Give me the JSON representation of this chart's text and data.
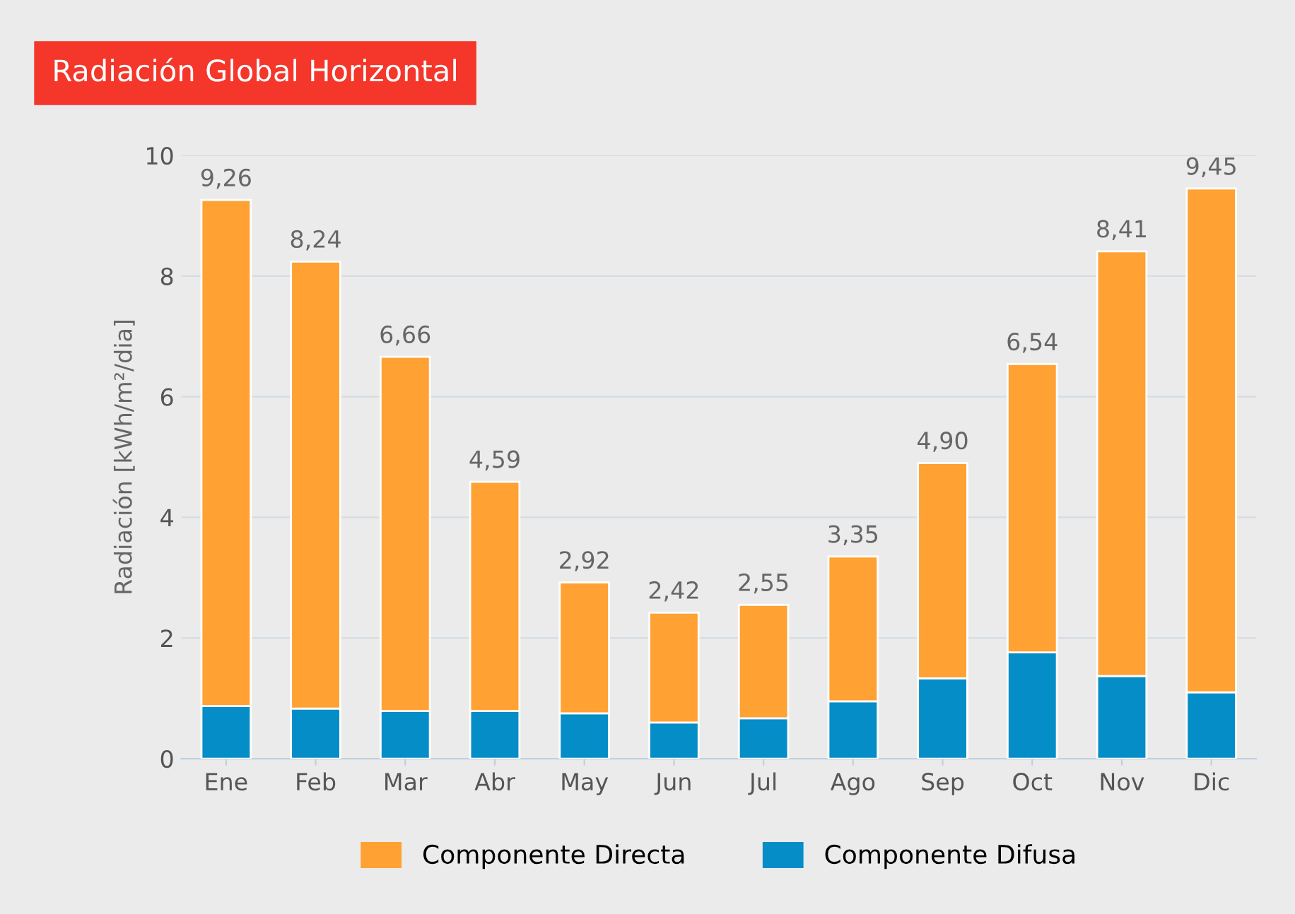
{
  "chart_data": {
    "type": "bar",
    "title": "Radiación Global Horizontal",
    "ylabel": "Radiación [kWh/m²/dia]",
    "categories": [
      "Ene",
      "Feb",
      "Mar",
      "Abr",
      "May",
      "Jun",
      "Jul",
      "Ago",
      "Sep",
      "Oct",
      "Nov",
      "Dic"
    ],
    "stacked": true,
    "series": [
      {
        "name": "Componente Difusa",
        "color": "#058dc7",
        "values": [
          0.87,
          0.83,
          0.79,
          0.79,
          0.75,
          0.6,
          0.67,
          0.95,
          1.33,
          1.76,
          1.37,
          1.1
        ]
      },
      {
        "name": "Componente Directa",
        "color": "#ffa133",
        "values": [
          8.39,
          7.41,
          5.87,
          3.8,
          2.17,
          1.82,
          1.88,
          2.4,
          3.57,
          4.78,
          7.04,
          8.35
        ]
      }
    ],
    "totals": [
      "9,26",
      "8,24",
      "6,66",
      "4,59",
      "2,92",
      "2,42",
      "2,55",
      "3,35",
      "4,90",
      "6,54",
      "8,41",
      "9,45"
    ],
    "ylim": [
      0,
      10
    ],
    "yticks": [
      0,
      2,
      4,
      6,
      8,
      10
    ],
    "grid": "y",
    "legend": "bottom"
  }
}
